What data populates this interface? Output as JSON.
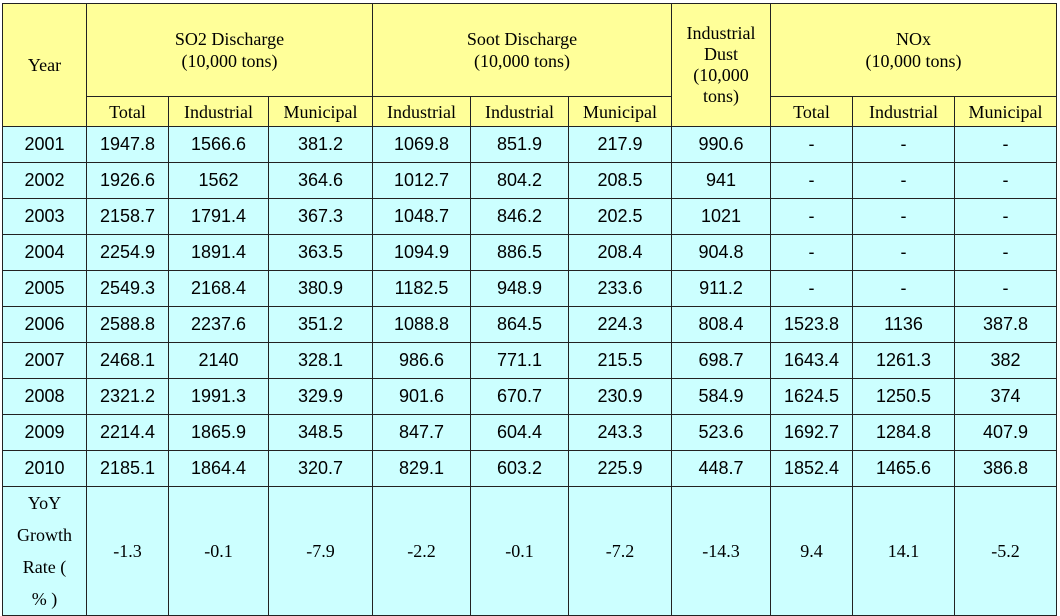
{
  "header": {
    "year": "Year",
    "so2": {
      "title": "SO2 Discharge",
      "unit": "(10,000 tons)"
    },
    "soot": {
      "title": "Soot Discharge",
      "unit": "(10,000 tons)"
    },
    "dust": {
      "line1": "Industrial",
      "line2": "Dust",
      "line3": "(10,000",
      "line4": "tons)"
    },
    "nox": {
      "title": "NOx",
      "unit": "(10,000 tons)"
    },
    "sub": [
      "Total",
      "Industrial",
      "Municipal",
      "Industrial",
      "Industrial",
      "Municipal",
      "",
      "Total",
      "Industrial",
      "Municipal"
    ]
  },
  "rows": [
    {
      "year": "2001",
      "values": [
        "1947.8",
        "1566.6",
        "381.2",
        "1069.8",
        "851.9",
        "217.9",
        "990.6",
        "-",
        "-",
        "-"
      ]
    },
    {
      "year": "2002",
      "values": [
        "1926.6",
        "1562",
        "364.6",
        "1012.7",
        "804.2",
        "208.5",
        "941",
        "-",
        "-",
        "-"
      ]
    },
    {
      "year": "2003",
      "values": [
        "2158.7",
        "1791.4",
        "367.3",
        "1048.7",
        "846.2",
        "202.5",
        "1021",
        "-",
        "-",
        "-"
      ]
    },
    {
      "year": "2004",
      "values": [
        "2254.9",
        "1891.4",
        "363.5",
        "1094.9",
        "886.5",
        "208.4",
        "904.8",
        "-",
        "-",
        "-"
      ]
    },
    {
      "year": "2005",
      "values": [
        "2549.3",
        "2168.4",
        "380.9",
        "1182.5",
        "948.9",
        "233.6",
        "911.2",
        "-",
        "-",
        "-"
      ]
    },
    {
      "year": "2006",
      "values": [
        "2588.8",
        "2237.6",
        "351.2",
        "1088.8",
        "864.5",
        "224.3",
        "808.4",
        "1523.8",
        "1136",
        "387.8"
      ]
    },
    {
      "year": "2007",
      "values": [
        "2468.1",
        "2140",
        "328.1",
        "986.6",
        "771.1",
        "215.5",
        "698.7",
        "1643.4",
        "1261.3",
        "382"
      ]
    },
    {
      "year": "2008",
      "values": [
        "2321.2",
        "1991.3",
        "329.9",
        "901.6",
        "670.7",
        "230.9",
        "584.9",
        "1624.5",
        "1250.5",
        "374"
      ]
    },
    {
      "year": "2009",
      "values": [
        "2214.4",
        "1865.9",
        "348.5",
        "847.7",
        "604.4",
        "243.3",
        "523.6",
        "1692.7",
        "1284.8",
        "407.9"
      ]
    },
    {
      "year": "2010",
      "values": [
        "2185.1",
        "1864.4",
        "320.7",
        "829.1",
        "603.2",
        "225.9",
        "448.7",
        "1852.4",
        "1465.6",
        "386.8"
      ]
    }
  ],
  "growth": {
    "label": [
      "YoY",
      "Growth",
      "Rate (",
      "% )"
    ],
    "values": [
      "-1.3",
      "-0.1",
      "-7.9",
      "-2.2",
      "-0.1",
      "-7.2",
      "-14.3",
      "9.4",
      "14.1",
      "-5.2"
    ]
  }
}
